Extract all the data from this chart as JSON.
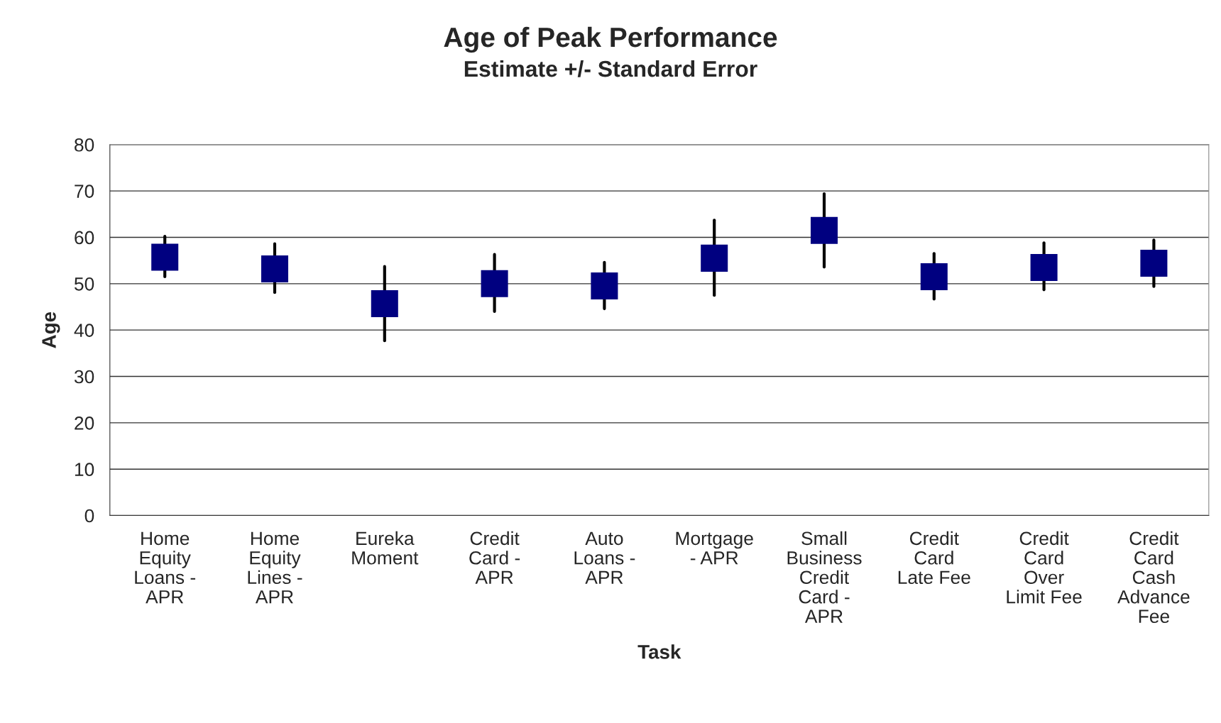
{
  "chart_data": {
    "type": "scatter",
    "title": "Age of Peak Performance",
    "subtitle": "Estimate +/- Standard Error",
    "xlabel": "Task",
    "ylabel": "Age",
    "categories": [
      "Home\nEquity\nLoans -\nAPR",
      "Home\nEquity\nLines -\nAPR",
      "Eureka\nMoment",
      "Credit\nCard -\nAPR",
      "Auto\nLoans -\nAPR",
      "Mortgage\n- APR",
      "Small\nBusiness\nCredit\nCard -\nAPR",
      "Credit\nCard\nLate Fee",
      "Credit\nCard\nOver\nLimit Fee",
      "Credit\nCard\nCash\nAdvance\nFee"
    ],
    "series": [
      {
        "color": "#000080",
        "values": [
          55.7,
          53.2,
          45.7,
          50.0,
          49.5,
          55.5,
          61.5,
          51.5,
          53.5,
          54.4
        ],
        "errors": [
          [
            51.5,
            60.2
          ],
          [
            48.1,
            58.6
          ],
          [
            37.7,
            53.7
          ],
          [
            44.0,
            56.3
          ],
          [
            44.6,
            54.6
          ],
          [
            47.5,
            63.7
          ],
          [
            53.6,
            69.4
          ],
          [
            46.7,
            56.5
          ],
          [
            48.7,
            58.8
          ],
          [
            49.4,
            59.4
          ]
        ]
      }
    ],
    "ylim": [
      0,
      80
    ],
    "yticks": [
      0,
      10,
      20,
      30,
      40,
      50,
      60,
      70,
      80
    ],
    "grid": "y",
    "marker": "square",
    "legend": false
  }
}
